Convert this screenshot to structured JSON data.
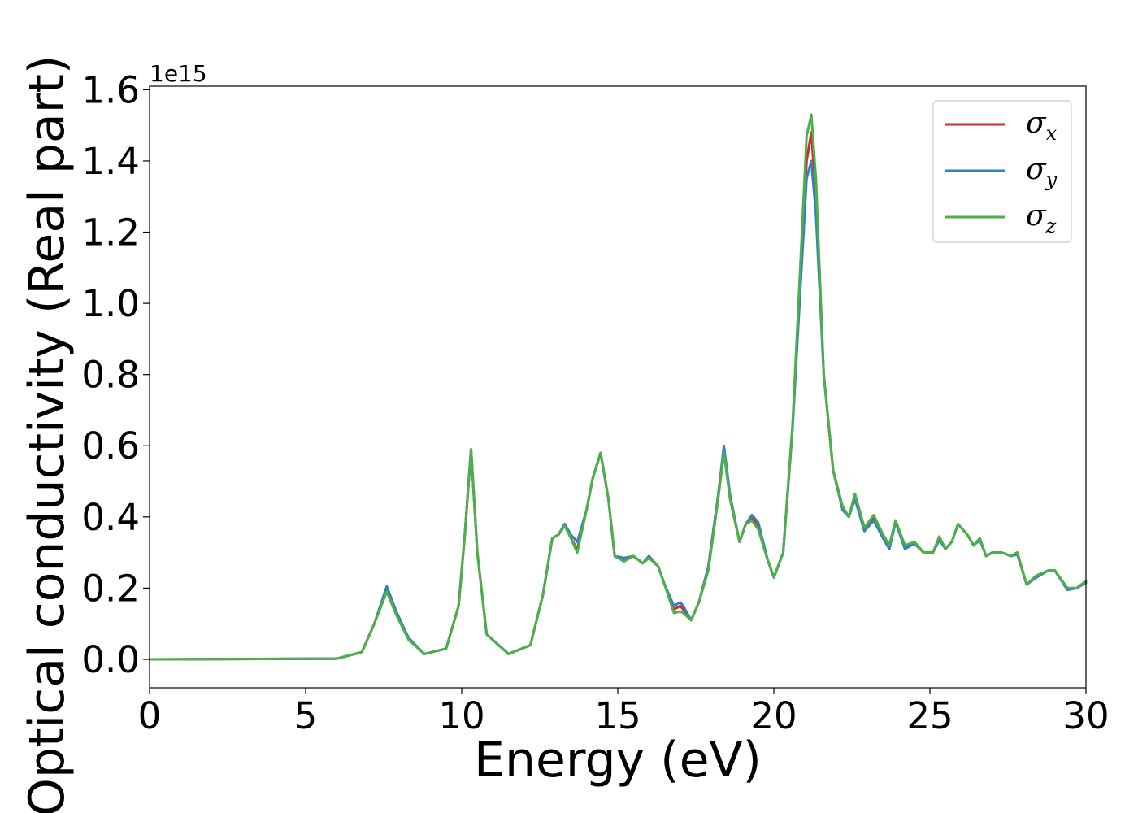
{
  "chart_data": {
    "type": "line",
    "title": "",
    "xlabel": "Energy (eV)",
    "ylabel": "Optical conductivity (Real part)",
    "y_offset_text": "1e15",
    "xlim": [
      0,
      30
    ],
    "ylim": [
      -0.08,
      1.61
    ],
    "x_ticks": [
      0,
      5,
      10,
      15,
      20,
      25,
      30
    ],
    "x_tick_labels": [
      "0",
      "5",
      "10",
      "15",
      "20",
      "25",
      "30"
    ],
    "y_ticks": [
      0.0,
      0.2,
      0.4,
      0.6,
      0.8,
      1.0,
      1.2,
      1.4,
      1.6
    ],
    "y_tick_labels": [
      "0.0",
      "0.2",
      "0.4",
      "0.6",
      "0.8",
      "1.0",
      "1.2",
      "1.4",
      "1.6"
    ],
    "grid": false,
    "legend_position": "top-right",
    "series": [
      {
        "name": "σx",
        "legend_symbol": "σ",
        "legend_subscript": "x",
        "color": "#d62728",
        "x": [
          0,
          6.0,
          6.8,
          7.2,
          7.6,
          7.9,
          8.3,
          8.8,
          9.5,
          9.9,
          10.1,
          10.3,
          10.5,
          10.8,
          11.5,
          12.2,
          12.6,
          12.9,
          13.1,
          13.3,
          13.5,
          13.7,
          14.0,
          14.2,
          14.45,
          14.7,
          14.9,
          15.2,
          15.5,
          15.8,
          16.0,
          16.3,
          16.5,
          16.8,
          17.0,
          17.1,
          17.35,
          17.6,
          17.9,
          18.2,
          18.4,
          18.6,
          18.9,
          19.1,
          19.3,
          19.5,
          19.8,
          20.0,
          20.3,
          20.6,
          20.9,
          21.05,
          21.2,
          21.35,
          21.6,
          21.9,
          22.2,
          22.4,
          22.6,
          22.9,
          23.2,
          23.5,
          23.7,
          23.9,
          24.2,
          24.5,
          24.8,
          25.1,
          25.3,
          25.5,
          25.7,
          25.9,
          26.2,
          26.4,
          26.6,
          26.8,
          27.0,
          27.3,
          27.6,
          27.8,
          28.1,
          28.4,
          28.8,
          29.0,
          29.4,
          29.7,
          30.0
        ],
        "y": [
          0.0,
          0.002,
          0.02,
          0.1,
          0.2,
          0.13,
          0.06,
          0.015,
          0.03,
          0.15,
          0.35,
          0.59,
          0.3,
          0.07,
          0.015,
          0.04,
          0.18,
          0.34,
          0.35,
          0.38,
          0.34,
          0.31,
          0.42,
          0.51,
          0.58,
          0.45,
          0.29,
          0.28,
          0.29,
          0.27,
          0.29,
          0.26,
          0.21,
          0.14,
          0.15,
          0.14,
          0.11,
          0.16,
          0.26,
          0.45,
          0.59,
          0.45,
          0.33,
          0.38,
          0.4,
          0.37,
          0.28,
          0.23,
          0.3,
          0.65,
          1.15,
          1.4,
          1.48,
          1.3,
          0.8,
          0.53,
          0.43,
          0.4,
          0.46,
          0.37,
          0.4,
          0.35,
          0.32,
          0.39,
          0.31,
          0.33,
          0.3,
          0.3,
          0.34,
          0.31,
          0.33,
          0.38,
          0.35,
          0.32,
          0.34,
          0.29,
          0.3,
          0.3,
          0.29,
          0.3,
          0.21,
          0.23,
          0.25,
          0.25,
          0.2,
          0.2,
          0.22
        ]
      },
      {
        "name": "σy",
        "legend_symbol": "σ",
        "legend_subscript": "y",
        "color": "#3a7ebf",
        "x": [
          0,
          6.0,
          6.8,
          7.2,
          7.6,
          7.9,
          8.3,
          8.8,
          9.5,
          9.9,
          10.1,
          10.3,
          10.5,
          10.8,
          11.5,
          12.2,
          12.6,
          12.9,
          13.1,
          13.3,
          13.5,
          13.7,
          14.0,
          14.2,
          14.45,
          14.7,
          14.9,
          15.2,
          15.5,
          15.8,
          16.0,
          16.3,
          16.5,
          16.8,
          17.0,
          17.1,
          17.35,
          17.6,
          17.9,
          18.2,
          18.4,
          18.6,
          18.9,
          19.1,
          19.3,
          19.5,
          19.8,
          20.0,
          20.3,
          20.6,
          20.9,
          21.05,
          21.2,
          21.35,
          21.6,
          21.9,
          22.2,
          22.4,
          22.6,
          22.9,
          23.2,
          23.5,
          23.7,
          23.9,
          24.2,
          24.5,
          24.8,
          25.1,
          25.3,
          25.5,
          25.7,
          25.9,
          26.2,
          26.4,
          26.6,
          26.8,
          27.0,
          27.3,
          27.6,
          27.8,
          28.1,
          28.4,
          28.8,
          29.0,
          29.4,
          29.7,
          30.0
        ],
        "y": [
          0.0,
          0.002,
          0.02,
          0.1,
          0.205,
          0.135,
          0.06,
          0.015,
          0.03,
          0.15,
          0.35,
          0.59,
          0.3,
          0.07,
          0.015,
          0.04,
          0.18,
          0.34,
          0.35,
          0.38,
          0.35,
          0.33,
          0.42,
          0.51,
          0.58,
          0.45,
          0.29,
          0.285,
          0.29,
          0.27,
          0.29,
          0.26,
          0.21,
          0.15,
          0.16,
          0.15,
          0.11,
          0.16,
          0.26,
          0.45,
          0.6,
          0.46,
          0.33,
          0.38,
          0.405,
          0.385,
          0.28,
          0.23,
          0.3,
          0.65,
          1.12,
          1.35,
          1.4,
          1.25,
          0.8,
          0.53,
          0.42,
          0.4,
          0.45,
          0.36,
          0.39,
          0.34,
          0.31,
          0.385,
          0.31,
          0.325,
          0.3,
          0.3,
          0.335,
          0.31,
          0.33,
          0.38,
          0.35,
          0.32,
          0.335,
          0.29,
          0.3,
          0.3,
          0.29,
          0.295,
          0.21,
          0.23,
          0.25,
          0.25,
          0.195,
          0.2,
          0.215
        ]
      },
      {
        "name": "σz",
        "legend_symbol": "σ",
        "legend_subscript": "z",
        "color": "#4daf4a",
        "x": [
          0,
          6.0,
          6.8,
          7.2,
          7.6,
          7.9,
          8.3,
          8.8,
          9.5,
          9.9,
          10.1,
          10.3,
          10.5,
          10.8,
          11.5,
          12.2,
          12.6,
          12.9,
          13.1,
          13.3,
          13.5,
          13.7,
          14.0,
          14.2,
          14.45,
          14.7,
          14.9,
          15.2,
          15.5,
          15.8,
          16.0,
          16.3,
          16.5,
          16.8,
          17.0,
          17.1,
          17.35,
          17.6,
          17.9,
          18.2,
          18.4,
          18.6,
          18.9,
          19.1,
          19.3,
          19.5,
          19.8,
          20.0,
          20.3,
          20.6,
          20.9,
          21.05,
          21.2,
          21.35,
          21.6,
          21.9,
          22.2,
          22.4,
          22.6,
          22.9,
          23.2,
          23.5,
          23.7,
          23.9,
          24.2,
          24.5,
          24.8,
          25.1,
          25.3,
          25.5,
          25.7,
          25.9,
          26.2,
          26.4,
          26.6,
          26.8,
          27.0,
          27.3,
          27.6,
          27.8,
          28.1,
          28.4,
          28.8,
          29.0,
          29.4,
          29.7,
          30.0
        ],
        "y": [
          0.0,
          0.002,
          0.02,
          0.1,
          0.19,
          0.125,
          0.055,
          0.015,
          0.03,
          0.15,
          0.35,
          0.59,
          0.3,
          0.07,
          0.015,
          0.04,
          0.18,
          0.34,
          0.35,
          0.375,
          0.34,
          0.3,
          0.42,
          0.51,
          0.58,
          0.45,
          0.29,
          0.275,
          0.29,
          0.27,
          0.285,
          0.26,
          0.21,
          0.13,
          0.135,
          0.13,
          0.11,
          0.16,
          0.25,
          0.44,
          0.58,
          0.45,
          0.33,
          0.38,
          0.39,
          0.365,
          0.28,
          0.23,
          0.3,
          0.66,
          1.2,
          1.47,
          1.53,
          1.35,
          0.8,
          0.53,
          0.43,
          0.4,
          0.465,
          0.37,
          0.405,
          0.35,
          0.32,
          0.39,
          0.32,
          0.33,
          0.3,
          0.3,
          0.345,
          0.31,
          0.33,
          0.38,
          0.35,
          0.32,
          0.34,
          0.29,
          0.3,
          0.3,
          0.29,
          0.3,
          0.21,
          0.235,
          0.25,
          0.25,
          0.2,
          0.2,
          0.22
        ]
      }
    ]
  }
}
